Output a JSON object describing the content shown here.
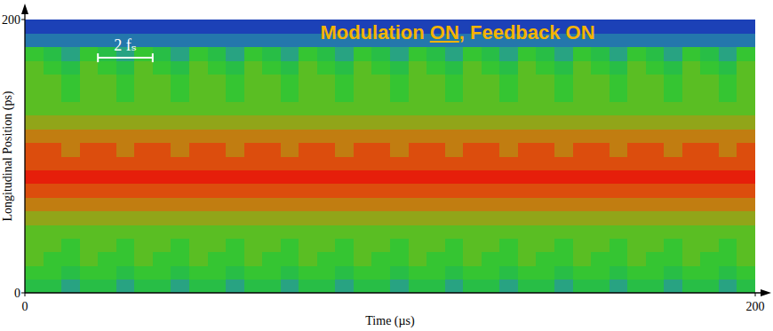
{
  "chart_data": {
    "type": "heatmap",
    "title": "Modulation ON, Feedback ON",
    "x_label": "Time (µs)",
    "y_label": "Longitudinal Position (ps)",
    "xlim": [
      0,
      200
    ],
    "ylim": [
      0,
      200
    ],
    "xticks": [
      0,
      200
    ],
    "yticks": [
      0,
      200
    ],
    "zlim": [
      0,
      10
    ],
    "x": [
      2.5,
      7.5,
      12.5,
      17.5,
      22.5,
      27.5,
      32.5,
      37.5,
      42.5,
      47.5,
      52.5,
      57.5,
      62.5,
      67.5,
      72.5,
      77.5,
      82.5,
      87.5,
      92.5,
      97.5,
      102.5,
      107.5,
      112.5,
      117.5,
      122.5,
      127.5,
      132.5,
      137.5,
      142.5,
      147.5,
      152.5,
      157.5,
      162.5,
      167.5,
      172.5,
      177.5,
      182.5,
      187.5,
      192.5,
      197.5
    ],
    "y": [
      5,
      15,
      25,
      35,
      45,
      55,
      65,
      75,
      85,
      95,
      105,
      115,
      125,
      135,
      145,
      155,
      165,
      175,
      185,
      195
    ],
    "z": [
      [
        4,
        4,
        3,
        4,
        4,
        3,
        4,
        4,
        3,
        4,
        4,
        3,
        4,
        4,
        3,
        4,
        4,
        3,
        4,
        4,
        3,
        4,
        4,
        3,
        4,
        4,
        3,
        4,
        4,
        3,
        4,
        4,
        3,
        4,
        4,
        3,
        4,
        4,
        3,
        4
      ],
      [
        5,
        5,
        4,
        5,
        5,
        4,
        5,
        5,
        4,
        5,
        5,
        4,
        5,
        5,
        4,
        5,
        5,
        4,
        5,
        5,
        4,
        5,
        5,
        4,
        5,
        5,
        4,
        5,
        5,
        4,
        5,
        5,
        4,
        5,
        5,
        4,
        5,
        5,
        4,
        5
      ],
      [
        6,
        5,
        5,
        6,
        5,
        5,
        6,
        5,
        5,
        6,
        5,
        5,
        6,
        5,
        5,
        6,
        5,
        5,
        6,
        5,
        5,
        6,
        5,
        5,
        6,
        5,
        5,
        6,
        5,
        5,
        6,
        5,
        5,
        6,
        5,
        5,
        6,
        5,
        5,
        6
      ],
      [
        6,
        6,
        5,
        6,
        6,
        5,
        6,
        6,
        5,
        6,
        6,
        5,
        6,
        6,
        5,
        6,
        6,
        5,
        6,
        6,
        5,
        6,
        6,
        5,
        6,
        6,
        5,
        6,
        6,
        5,
        6,
        6,
        5,
        6,
        6,
        5,
        6,
        6,
        5,
        6
      ],
      [
        6,
        6,
        6,
        6,
        6,
        6,
        6,
        6,
        6,
        6,
        6,
        6,
        6,
        6,
        6,
        6,
        6,
        6,
        6,
        6,
        6,
        6,
        6,
        6,
        6,
        6,
        6,
        6,
        6,
        6,
        6,
        6,
        6,
        6,
        6,
        6,
        6,
        6,
        6,
        6
      ],
      [
        7,
        7,
        7,
        7,
        7,
        7,
        7,
        7,
        7,
        7,
        7,
        7,
        7,
        7,
        7,
        7,
        7,
        7,
        7,
        7,
        7,
        7,
        7,
        7,
        7,
        7,
        7,
        7,
        7,
        7,
        7,
        7,
        7,
        7,
        7,
        7,
        7,
        7,
        7,
        7
      ],
      [
        8,
        8,
        8,
        8,
        8,
        8,
        8,
        8,
        8,
        8,
        8,
        8,
        8,
        8,
        8,
        8,
        8,
        8,
        8,
        8,
        8,
        8,
        8,
        8,
        8,
        8,
        8,
        8,
        8,
        8,
        8,
        8,
        8,
        8,
        8,
        8,
        8,
        8,
        8,
        8
      ],
      [
        9,
        9,
        9,
        9,
        9,
        9,
        9,
        9,
        9,
        9,
        9,
        9,
        9,
        9,
        9,
        9,
        9,
        9,
        9,
        9,
        9,
        9,
        9,
        9,
        9,
        9,
        9,
        9,
        9,
        9,
        9,
        9,
        9,
        9,
        9,
        9,
        9,
        9,
        9,
        9
      ],
      [
        10,
        10,
        10,
        10,
        10,
        10,
        10,
        10,
        10,
        10,
        10,
        10,
        10,
        10,
        10,
        10,
        10,
        10,
        10,
        10,
        10,
        10,
        10,
        10,
        10,
        10,
        10,
        10,
        10,
        10,
        10,
        10,
        10,
        10,
        10,
        10,
        10,
        10,
        10,
        10
      ],
      [
        9,
        9,
        9,
        9,
        9,
        9,
        9,
        9,
        9,
        9,
        9,
        9,
        9,
        9,
        9,
        9,
        9,
        9,
        9,
        9,
        9,
        9,
        9,
        9,
        9,
        9,
        9,
        9,
        9,
        9,
        9,
        9,
        9,
        9,
        9,
        9,
        9,
        9,
        9,
        9
      ],
      [
        9,
        9,
        8,
        9,
        9,
        8,
        9,
        9,
        8,
        9,
        9,
        8,
        9,
        9,
        8,
        9,
        9,
        8,
        9,
        9,
        8,
        9,
        9,
        8,
        9,
        9,
        8,
        9,
        9,
        8,
        9,
        9,
        8,
        9,
        9,
        8,
        9,
        9,
        8,
        9
      ],
      [
        8,
        8,
        8,
        8,
        8,
        8,
        8,
        8,
        8,
        8,
        8,
        8,
        8,
        8,
        8,
        8,
        8,
        8,
        8,
        8,
        8,
        8,
        8,
        8,
        8,
        8,
        8,
        8,
        8,
        8,
        8,
        8,
        8,
        8,
        8,
        8,
        8,
        8,
        8,
        8
      ],
      [
        7,
        7,
        7,
        7,
        7,
        7,
        7,
        7,
        7,
        7,
        7,
        7,
        7,
        7,
        7,
        7,
        7,
        7,
        7,
        7,
        7,
        7,
        7,
        7,
        7,
        7,
        7,
        7,
        7,
        7,
        7,
        7,
        7,
        7,
        7,
        7,
        7,
        7,
        7,
        7
      ],
      [
        6,
        6,
        6,
        6,
        6,
        6,
        6,
        6,
        6,
        6,
        6,
        6,
        6,
        6,
        6,
        6,
        6,
        6,
        6,
        6,
        6,
        6,
        6,
        6,
        6,
        6,
        6,
        6,
        6,
        6,
        6,
        6,
        6,
        6,
        6,
        6,
        6,
        6,
        6,
        6
      ],
      [
        6,
        6,
        5,
        6,
        6,
        5,
        6,
        6,
        5,
        6,
        6,
        5,
        6,
        6,
        5,
        6,
        6,
        5,
        6,
        6,
        5,
        6,
        6,
        5,
        6,
        6,
        5,
        6,
        6,
        5,
        6,
        6,
        5,
        6,
        6,
        5,
        6,
        6,
        5,
        6
      ],
      [
        6,
        6,
        5,
        6,
        6,
        5,
        6,
        6,
        5,
        6,
        6,
        5,
        6,
        6,
        5,
        6,
        6,
        5,
        6,
        6,
        5,
        6,
        6,
        5,
        6,
        6,
        5,
        6,
        6,
        5,
        6,
        6,
        5,
        6,
        6,
        5,
        6,
        6,
        5,
        6
      ],
      [
        6,
        5,
        4,
        6,
        5,
        4,
        6,
        5,
        4,
        6,
        5,
        4,
        6,
        5,
        4,
        6,
        5,
        4,
        6,
        5,
        4,
        6,
        5,
        4,
        6,
        5,
        4,
        6,
        5,
        4,
        6,
        5,
        4,
        6,
        5,
        4,
        6,
        5,
        4,
        6
      ],
      [
        5,
        4,
        3,
        5,
        4,
        3,
        5,
        4,
        3,
        5,
        4,
        3,
        5,
        4,
        3,
        5,
        4,
        3,
        5,
        4,
        3,
        5,
        4,
        3,
        5,
        4,
        3,
        5,
        4,
        3,
        5,
        4,
        3,
        5,
        4,
        3,
        5,
        4,
        3,
        5
      ],
      [
        2,
        2,
        2,
        2,
        2,
        2,
        2,
        2,
        2,
        2,
        2,
        2,
        2,
        2,
        2,
        2,
        2,
        2,
        2,
        2,
        2,
        2,
        2,
        2,
        2,
        2,
        2,
        2,
        2,
        2,
        2,
        2,
        2,
        2,
        2,
        2,
        2,
        2,
        2,
        2
      ],
      [
        1,
        1,
        1,
        1,
        1,
        1,
        1,
        1,
        1,
        1,
        1,
        1,
        1,
        1,
        1,
        1,
        1,
        1,
        1,
        1,
        1,
        1,
        1,
        1,
        1,
        1,
        1,
        1,
        1,
        1,
        1,
        1,
        1,
        1,
        1,
        1,
        1,
        1,
        1,
        1
      ]
    ],
    "annotations": [
      {
        "text": "2 fₛ",
        "x": [
          20,
          35
        ],
        "y": 172
      }
    ]
  }
}
